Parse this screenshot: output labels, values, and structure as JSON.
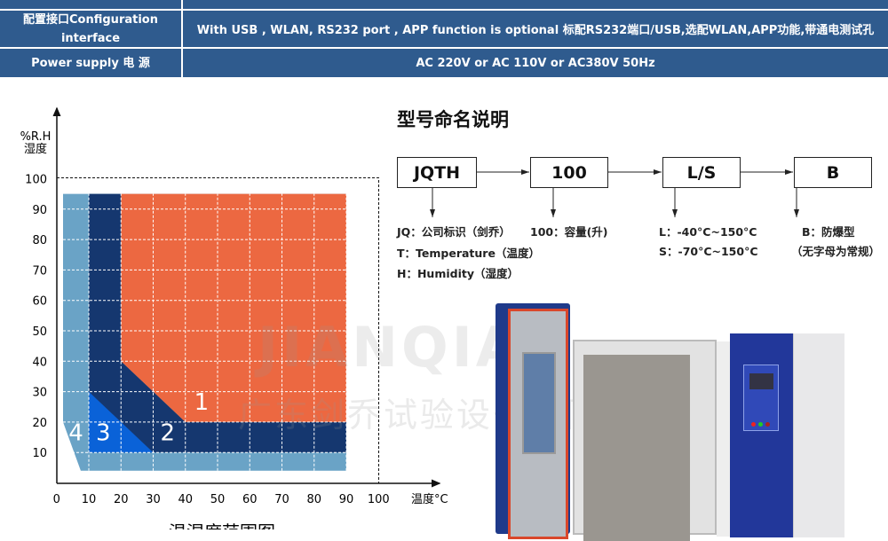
{
  "spec_table": {
    "rows": [
      {
        "label": "配置接口Configuration interface",
        "value": "With USB , WLAN, RS232  port , APP function is optional 标配RS232端口/USB,选配WLAN,APP功能,带通电测试孔"
      },
      {
        "label": "Power supply 电 源",
        "value": "AC 220V or AC 110V or AC380V 50Hz"
      }
    ],
    "color": "#2f5b8e"
  },
  "model_naming": {
    "title": "型号命名说明",
    "boxes": [
      "JQTH",
      "100",
      "L/S",
      "B"
    ],
    "notes": {
      "jqth": [
        "JQ：公司标识（剑乔）",
        "T：Temperature（温度）",
        "H：Humidity（湿度）"
      ],
      "capacity": [
        "100：容量(升)"
      ],
      "ls": [
        "L：-40°C~150°C",
        "S：-70°C~150°C"
      ],
      "b": [
        "B：防爆型",
        "（无字母为常规）"
      ]
    }
  },
  "chart_data": {
    "type": "area",
    "title": "温湿度范围图",
    "xlabel": "温度°C",
    "ylabel": [
      "%R.H",
      "湿度"
    ],
    "xlim": [
      0,
      100
    ],
    "ylim": [
      0,
      100
    ],
    "xticks": [
      "0",
      "10",
      "20",
      "30",
      "40",
      "50",
      "60",
      "70",
      "80",
      "90",
      "100"
    ],
    "yticks": [
      "10",
      "20",
      "30",
      "40",
      "50",
      "60",
      "70",
      "80",
      "90",
      "100"
    ],
    "grid": true,
    "regions": [
      {
        "name": "4",
        "color": "#6aa3c6",
        "points": [
          [
            2,
            95
          ],
          [
            90,
            95
          ],
          [
            90,
            4
          ],
          [
            7.5,
            4
          ],
          [
            2,
            20
          ]
        ]
      },
      {
        "name": "2",
        "color": "#15376f",
        "points": [
          [
            10,
            95
          ],
          [
            20,
            95
          ],
          [
            20,
            40
          ],
          [
            40,
            20
          ],
          [
            90,
            20
          ],
          [
            90,
            10
          ],
          [
            10,
            10
          ]
        ]
      },
      {
        "name": "1",
        "color": "#ec6841",
        "points": [
          [
            20,
            95
          ],
          [
            90,
            95
          ],
          [
            90,
            20
          ],
          [
            40,
            20
          ],
          [
            20,
            40
          ]
        ]
      },
      {
        "name": "3",
        "color": "#0a62d8",
        "points": [
          [
            10,
            30
          ],
          [
            30,
            10
          ],
          [
            10,
            10
          ]
        ]
      }
    ],
    "region_labels": [
      {
        "text": "1",
        "x": 45,
        "y": 24
      },
      {
        "text": "2",
        "x": 34.5,
        "y": 14
      },
      {
        "text": "3",
        "x": 14.5,
        "y": 14
      },
      {
        "text": "4",
        "x": 6,
        "y": 14
      }
    ]
  },
  "watermark": [
    "JIANQIAO",
    "广东剑乔试验设备有限公司"
  ]
}
